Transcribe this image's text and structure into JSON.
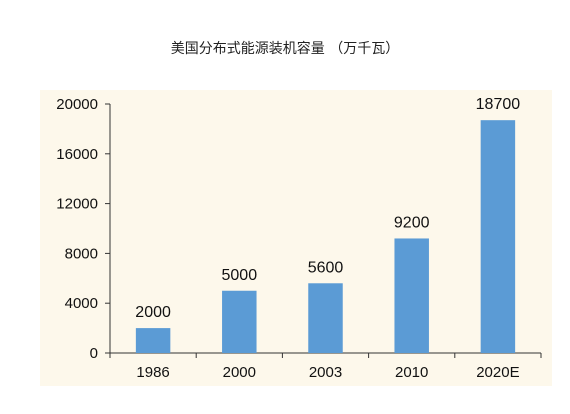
{
  "chart_data": {
    "type": "bar",
    "title": "美国分布式能源装机容量 （万千瓦）",
    "categories": [
      "1986",
      "2000",
      "2003",
      "2010",
      "2020E"
    ],
    "values": [
      2000,
      5000,
      5600,
      9200,
      18700
    ],
    "data_labels": [
      "2000",
      "5000",
      "5600",
      "9200",
      "18700"
    ],
    "xlabel": "",
    "ylabel": "",
    "ylim": [
      0,
      20000
    ],
    "yticks": [
      0,
      4000,
      8000,
      12000,
      16000,
      20000
    ],
    "ytick_labels": [
      "0",
      "4000",
      "8000",
      "12000",
      "16000",
      "20000"
    ],
    "grid": false,
    "legend": "none",
    "colors": {
      "bar": "#5b9bd5",
      "plot_background": "#fdf8eb",
      "axis": "#333333"
    }
  }
}
